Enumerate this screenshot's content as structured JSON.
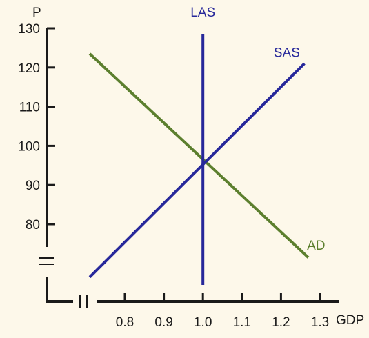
{
  "chart_data": {
    "type": "line",
    "title": "",
    "xlabel": "GDP",
    "ylabel": "P",
    "x_ticks": [
      "0.8",
      "0.9",
      "1.0",
      "1.1",
      "1.2",
      "1.3"
    ],
    "y_ticks": [
      "80",
      "90",
      "100",
      "110",
      "120",
      "130"
    ],
    "xlim": [
      0.8,
      1.3
    ],
    "ylim": [
      80,
      130
    ],
    "axis_breaks": [
      "x",
      "y"
    ],
    "series": [
      {
        "name": "AD",
        "color": "#5c7f2e",
        "points": [
          [
            0.71,
            123.5
          ],
          [
            1.27,
            71.5
          ]
        ]
      },
      {
        "name": "SAS",
        "color": "#27289a",
        "points": [
          [
            0.71,
            66.5
          ],
          [
            1.26,
            121.0
          ]
        ]
      },
      {
        "name": "LAS",
        "color": "#27289a",
        "points": [
          [
            1.0,
            64.5
          ],
          [
            1.0,
            128.5
          ]
        ]
      }
    ],
    "series_labels": [
      {
        "name": "LAS",
        "anchor": [
          1.0,
          133.0
        ]
      },
      {
        "name": "SAS",
        "anchor": [
          1.215,
          122.7
        ]
      },
      {
        "name": "AD",
        "anchor": [
          1.29,
          73.5
        ]
      }
    ]
  }
}
